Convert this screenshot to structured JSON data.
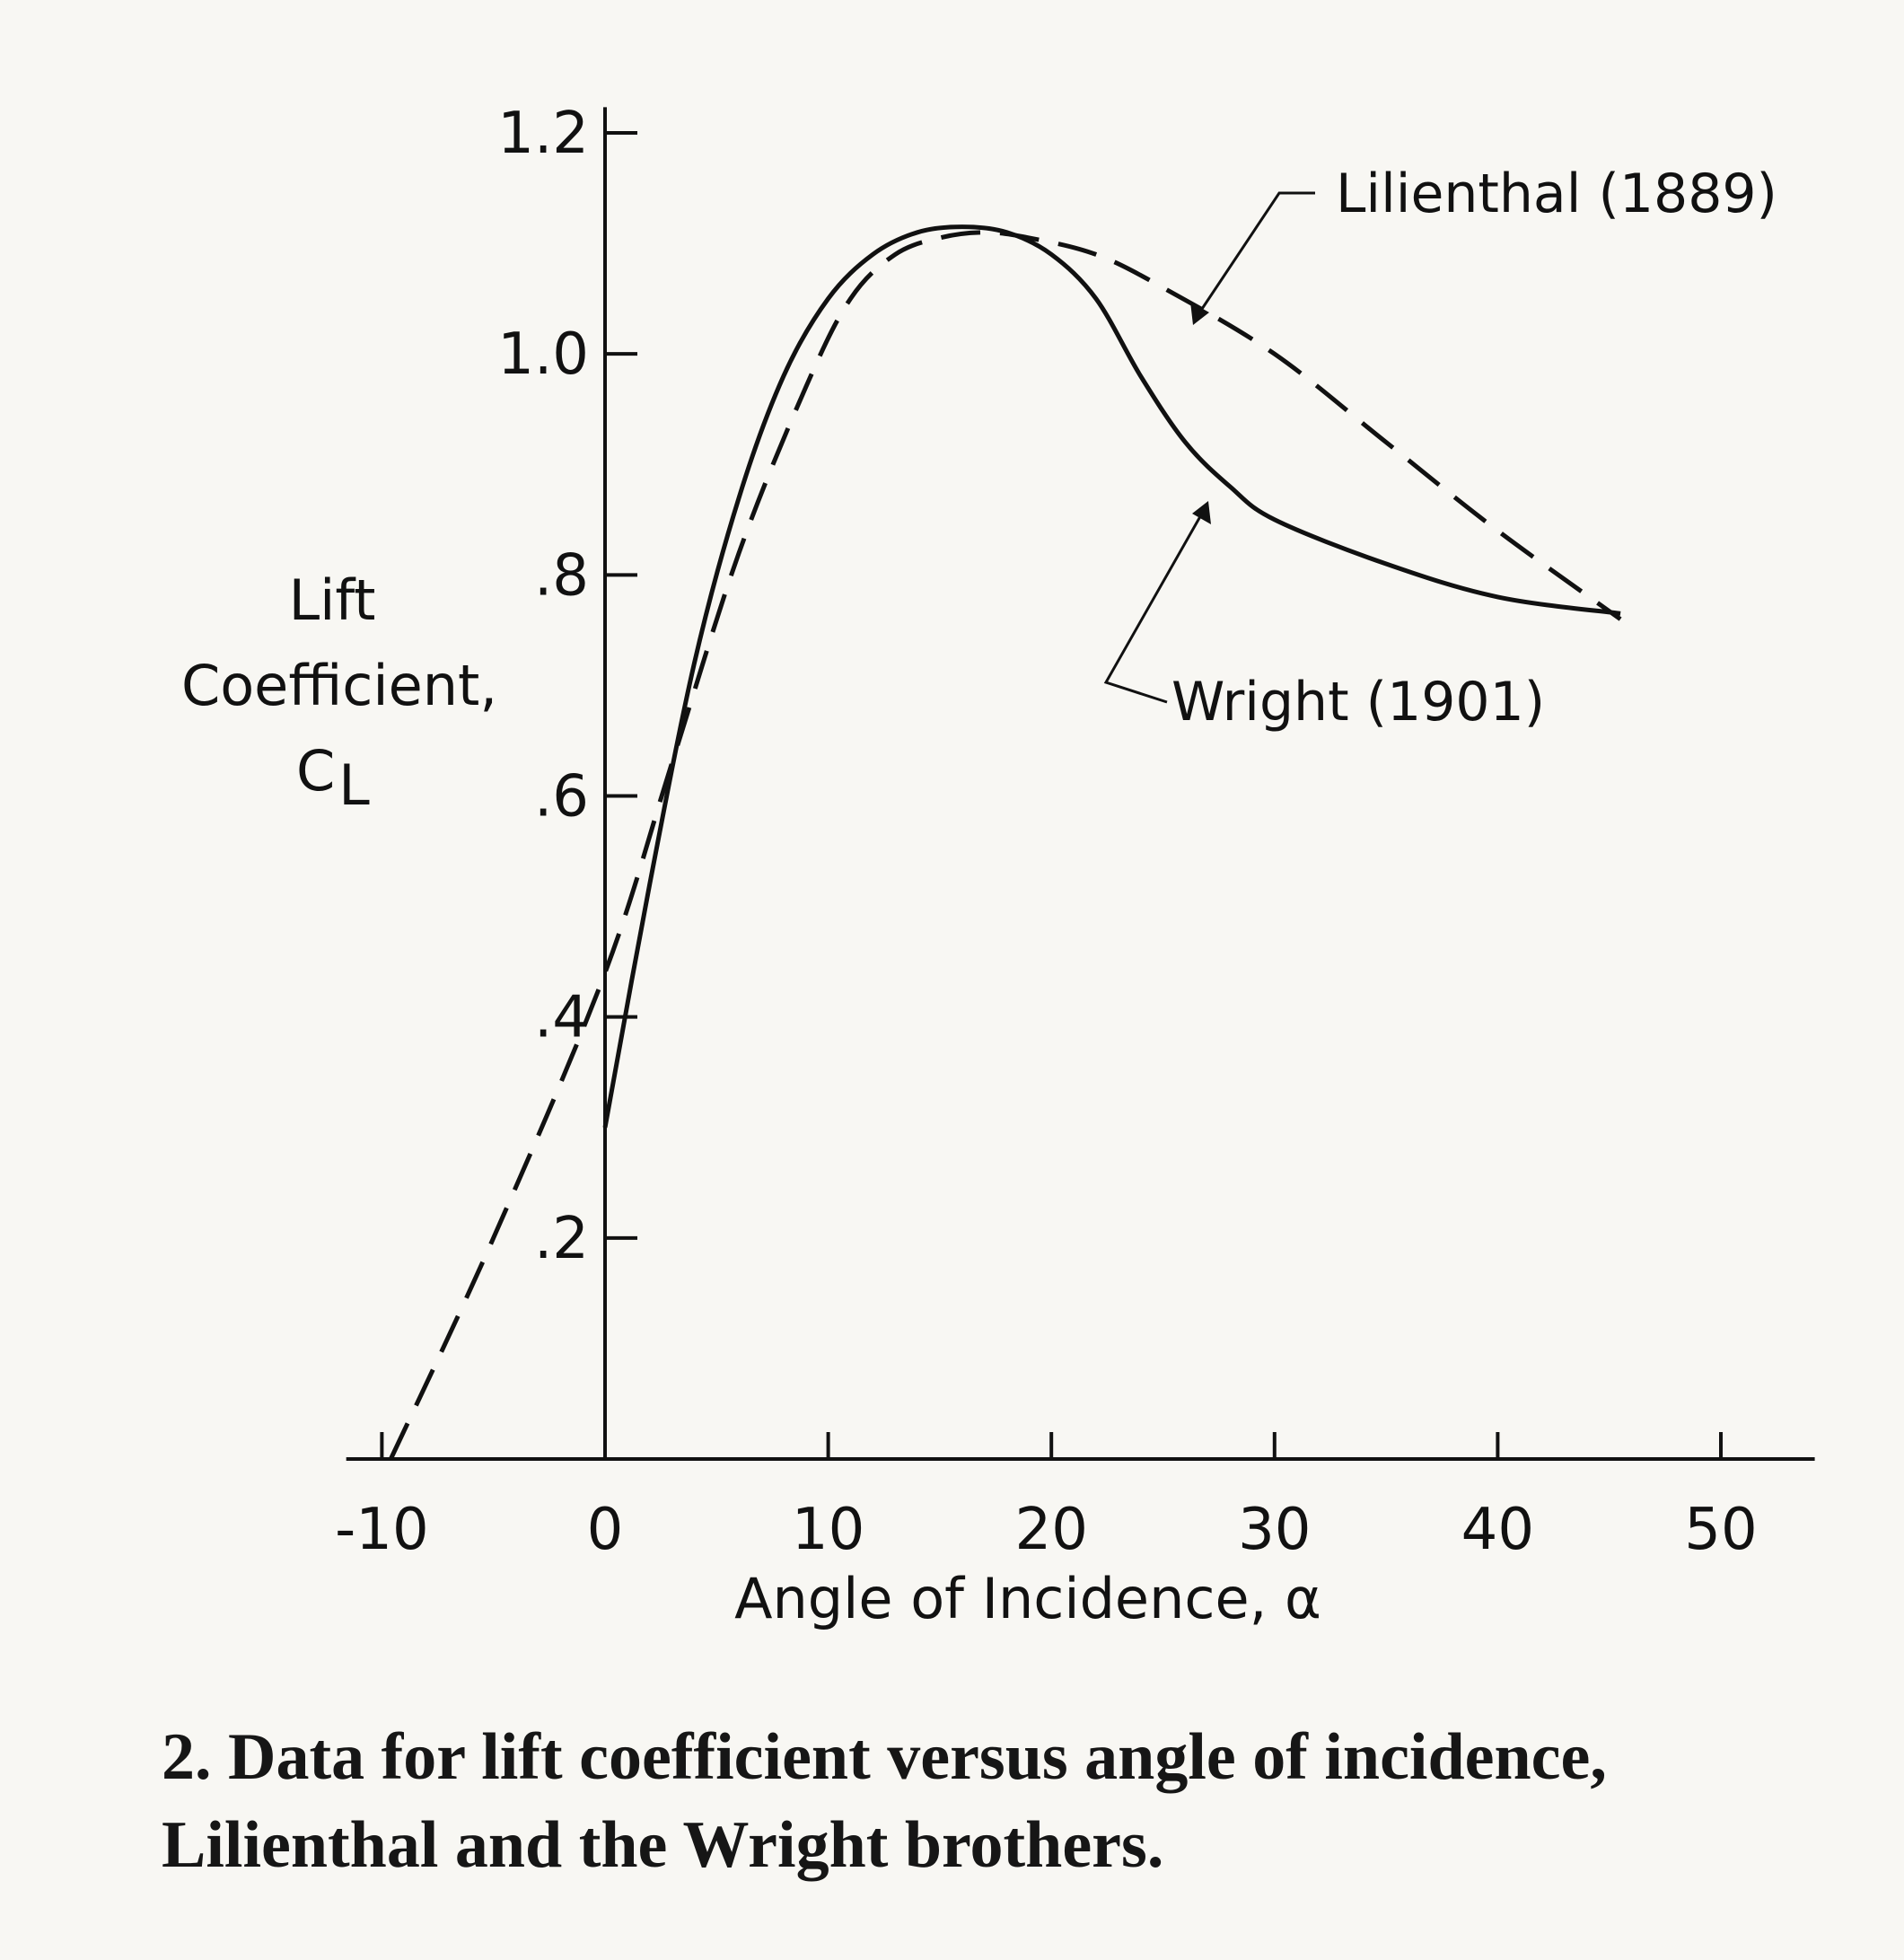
{
  "chart_data": {
    "type": "line",
    "xlabel": "Angle of Incidence, α",
    "ylabel_lines": [
      "Lift",
      "Coefficient,",
      "C"
    ],
    "ylabel_subscript": "L",
    "xlim": [
      -12,
      53
    ],
    "ylim": [
      0,
      1.22
    ],
    "x_ticks": [
      -10,
      0,
      10,
      20,
      30,
      40,
      50
    ],
    "x_tick_labels": [
      "-10",
      "0",
      "10",
      "20",
      "30",
      "40",
      "50"
    ],
    "y_ticks": [
      0.2,
      0.4,
      0.6,
      0.8,
      1.0,
      1.2
    ],
    "y_tick_labels": [
      ".2",
      ".4",
      ".6",
      ".8",
      "1.0",
      "1.2"
    ],
    "grid": false,
    "series": [
      {
        "name": "Lilienthal (1889)",
        "style": "dashed",
        "x": [
          -9.6,
          -5,
          0,
          3,
          6,
          9,
          11,
          13,
          15,
          17,
          19,
          22,
          25,
          30,
          35,
          40,
          45.5
        ],
        "y": [
          0.0,
          0.2,
          0.44,
          0.63,
          0.82,
          0.97,
          1.05,
          1.09,
          1.105,
          1.11,
          1.105,
          1.09,
          1.06,
          1.0,
          0.92,
          0.84,
          0.76
        ]
      },
      {
        "name": "Wright (1901)",
        "style": "solid",
        "x": [
          0,
          2,
          4,
          6,
          8,
          10,
          12,
          14,
          16,
          18,
          20,
          22,
          24,
          26,
          28,
          30,
          35,
          40,
          45.5
        ],
        "y": [
          0.3,
          0.52,
          0.72,
          0.87,
          0.98,
          1.05,
          1.09,
          1.11,
          1.115,
          1.11,
          1.09,
          1.05,
          0.98,
          0.92,
          0.88,
          0.85,
          0.81,
          0.78,
          0.765
        ]
      }
    ],
    "annotations": [
      {
        "series": "Lilienthal (1889)",
        "label": "Lilienthal (1889)"
      },
      {
        "series": "Wright (1901)",
        "label": "Wright (1901)"
      }
    ]
  },
  "caption": {
    "number": "2.",
    "text": "Data for lift coefficient versus angle of incidence, Lilienthal and the Wright brothers."
  }
}
